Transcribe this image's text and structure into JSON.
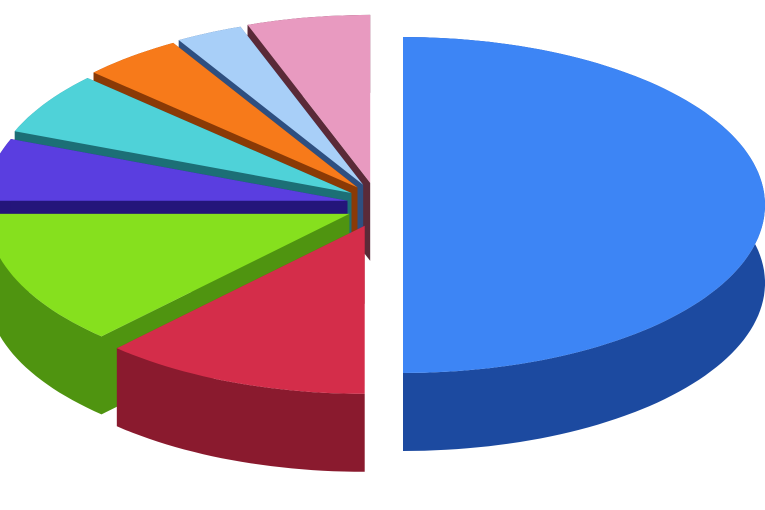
{
  "chart_data": {
    "type": "pie",
    "style": "3d-exploded",
    "title": "",
    "legend": "none",
    "start": "top",
    "direction": "clockwise",
    "slices": [
      {
        "value": 50,
        "color": "#3d85f5",
        "side_color": "#1c4aa0"
      },
      {
        "value": 12,
        "color": "#d42d4a",
        "side_color": "#8a1a2e"
      },
      {
        "value": 13,
        "color": "#86e01e",
        "side_color": "#4f9410"
      },
      {
        "value": 6,
        "color": "#5a3ee0",
        "side_color": "#24157a"
      },
      {
        "value": 6,
        "color": "#4fd2d8",
        "side_color": "#1c6f76"
      },
      {
        "value": 4.5,
        "color": "#f77a1a",
        "side_color": "#8a3a06"
      },
      {
        "value": 3,
        "color": "#a8cff8",
        "side_color": "#2e4f80"
      },
      {
        "value": 5.5,
        "color": "#e89ac0",
        "side_color": "#5a2a38"
      }
    ]
  }
}
